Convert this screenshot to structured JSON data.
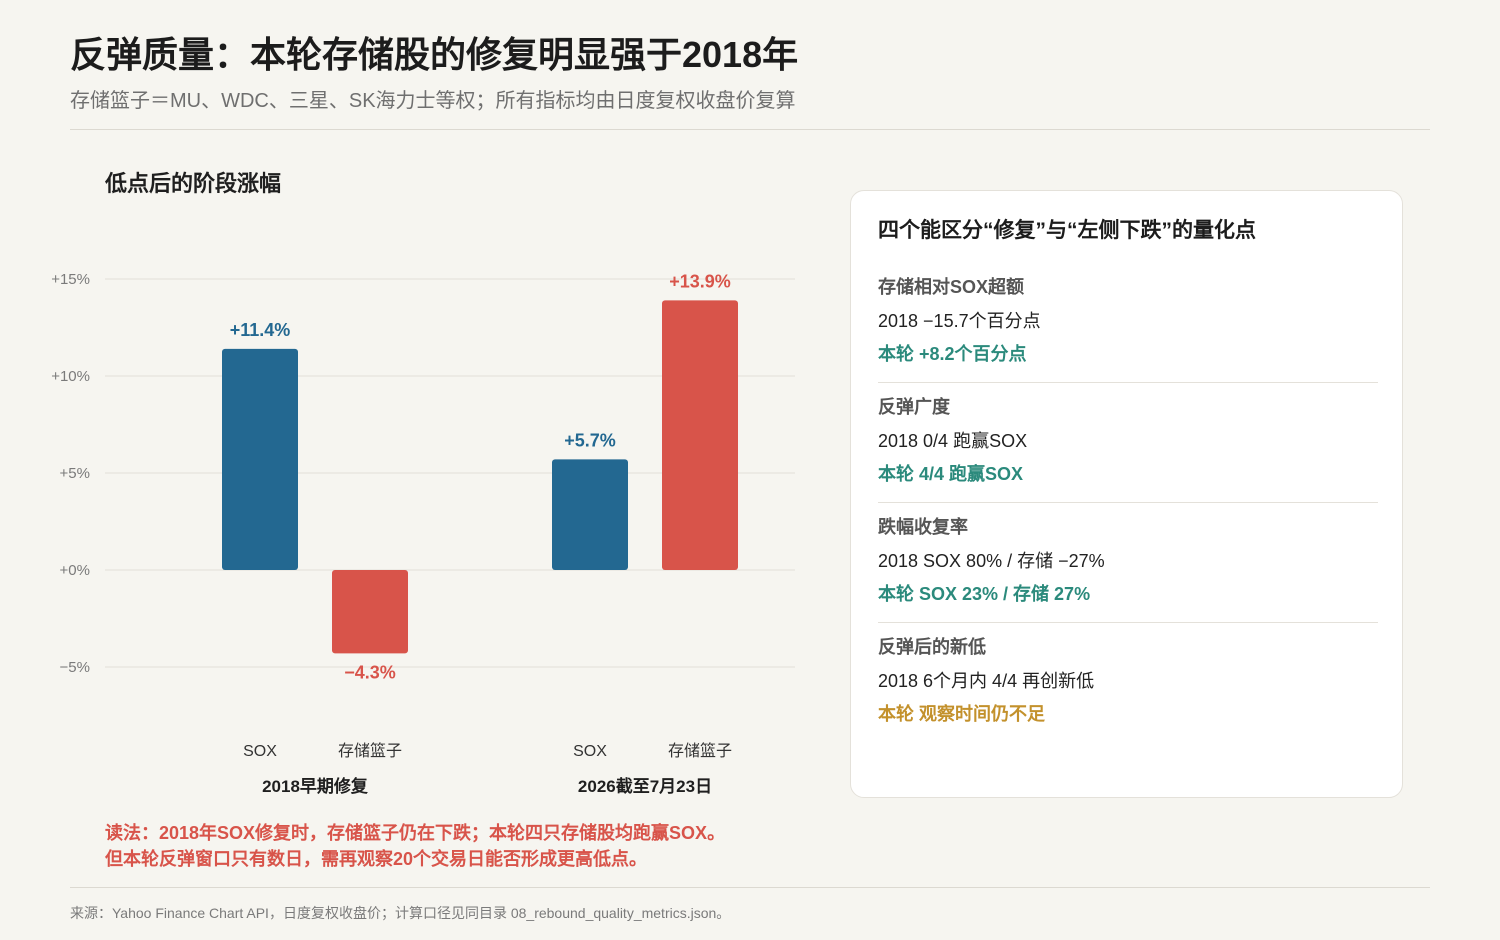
{
  "page": {
    "title": "反弹质量：本轮存储股的修复明显强于2018年",
    "subtitle": "存储篮子＝MU、WDC、三星、SK海力士等权；所有指标均由日度复权收盘价复算"
  },
  "chart_data": {
    "type": "bar",
    "title": "低点后的阶段涨幅",
    "xlabel": "",
    "ylabel": "",
    "categories": [
      "2018早期修复",
      "2026截至7月23日"
    ],
    "series": [
      {
        "name": "SOX",
        "values": [
          11.4,
          5.7
        ],
        "labels": [
          "+11.4%",
          "+5.7%"
        ],
        "color": "#236891"
      },
      {
        "name": "存储篮子",
        "values": [
          -4.3,
          13.9
        ],
        "labels": [
          "−4.3%",
          "+13.9%"
        ],
        "color": "#d8544a"
      }
    ],
    "ylim": [
      -5,
      15
    ],
    "yticks": [
      {
        "value": 15,
        "label": "+15%"
      },
      {
        "value": 10,
        "label": "+10%"
      },
      {
        "value": 5,
        "label": "+5%"
      },
      {
        "value": 0,
        "label": "+0%"
      },
      {
        "value": -5,
        "label": "−5%"
      }
    ],
    "grid": true,
    "legend": "none"
  },
  "note": {
    "lines": [
      "读法：2018年SOX修复时，存储篮子仍在下跌；本轮四只存储股均跑赢SOX。",
      "但本轮反弹窗口只有数日，需再观察20个交易日能否形成更高低点。"
    ],
    "color": "#d8544a"
  },
  "card": {
    "title": "四个能区分“修复”与“左侧下跌”的量化点",
    "items": [
      {
        "heading": "存储相对SOX超额",
        "past": "2018 −15.7个百分点",
        "current": "本轮 +8.2个百分点",
        "current_color": "#2b8a7c"
      },
      {
        "heading": "反弹广度",
        "past": "2018 0/4 跑赢SOX",
        "current": "本轮 4/4 跑赢SOX",
        "current_color": "#2b8a7c"
      },
      {
        "heading": "跌幅收复率",
        "past": "2018 SOX 80% / 存储 −27%",
        "current": "本轮 SOX 23% / 存储 27%",
        "current_color": "#2b8a7c"
      },
      {
        "heading": "反弹后的新低",
        "past": "2018 6个月内 4/4 再创新低",
        "current": "本轮 观察时间仍不足",
        "current_color": "#c3912c"
      }
    ]
  },
  "footer": "来源：Yahoo Finance Chart API，日度复权收盘价；计算口径见同目录 08_rebound_quality_metrics.json。"
}
